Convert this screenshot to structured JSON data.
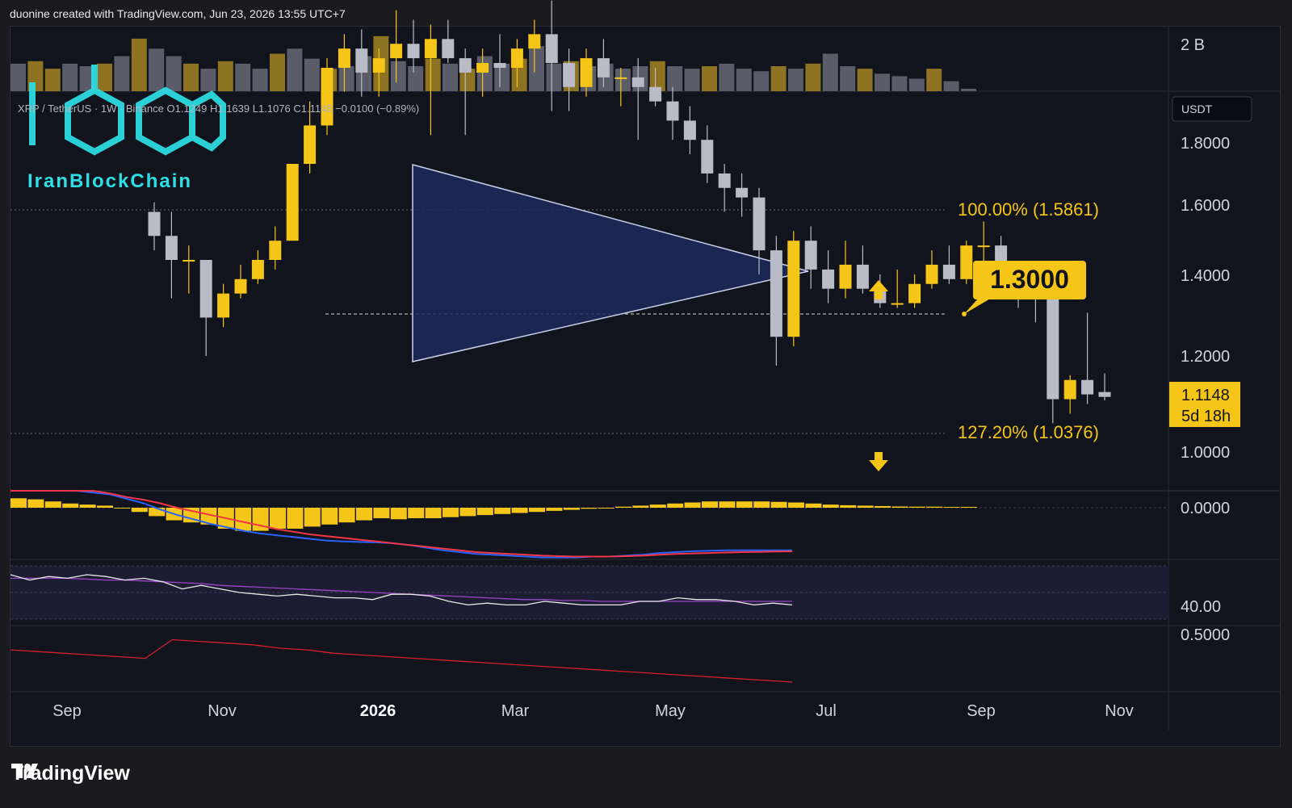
{
  "header": {
    "attribution": "duonine created with TradingView.com, Jun 23, 2026 13:55 UTC+7"
  },
  "footer": {
    "brand": "TradingView"
  },
  "watermark": {
    "brand": "IranBlockChain"
  },
  "symbol_info": "XRP / TetherUS · 1W · Binance  O1.1249  H1.1639  L1.1076  C1.1148  −0.0100 (−0.89%)",
  "price_scale": {
    "currency": "USDT",
    "ticks": [
      "1.8000",
      "1.6000",
      "1.4000",
      "1.2000",
      "1.0000"
    ],
    "current_price": "1.1148",
    "countdown": "5d 18h",
    "volume_label": "2 B",
    "macd_label": "0.0000",
    "rsi_label": "40.00",
    "lower_label": "0.5000"
  },
  "time_axis": [
    "Sep",
    "Nov",
    "2026",
    "Mar",
    "May",
    "Jul",
    "Sep",
    "Nov"
  ],
  "annotations": {
    "fib_100": "100.00% (1.5861)",
    "fib_127": "127.20% (1.0376)",
    "callout": "1.3000"
  },
  "colors": {
    "up": "#f5c518",
    "down": "#b9bcc6",
    "triangle_fill": "#1d2a5c",
    "triangle_stroke": "#c9d0ea",
    "macd": "#2962ff",
    "signal": "#f23645",
    "rsi": "#e9e9ea",
    "rsi_ma": "#9c45c7",
    "lower_line": "#d3202a"
  },
  "chart_data": [
    {
      "type": "candlestick",
      "title": "XRP / TetherUS 1W",
      "ylabel": "USDT",
      "ylim": [
        0.92,
        1.9
      ],
      "candles": [
        {
          "o": 1.5,
          "h": 1.52,
          "l": 1.42,
          "c": 1.45
        },
        {
          "o": 1.45,
          "h": 1.5,
          "l": 1.32,
          "c": 1.4
        },
        {
          "o": 1.4,
          "h": 1.43,
          "l": 1.33,
          "c": 1.4
        },
        {
          "o": 1.4,
          "h": 1.4,
          "l": 1.2,
          "c": 1.28
        },
        {
          "o": 1.28,
          "h": 1.35,
          "l": 1.26,
          "c": 1.33
        },
        {
          "o": 1.33,
          "h": 1.39,
          "l": 1.32,
          "c": 1.36
        },
        {
          "o": 1.36,
          "h": 1.42,
          "l": 1.35,
          "c": 1.4
        },
        {
          "o": 1.4,
          "h": 1.47,
          "l": 1.38,
          "c": 1.44
        },
        {
          "o": 1.44,
          "h": 1.6,
          "l": 1.44,
          "c": 1.6
        },
        {
          "o": 1.6,
          "h": 1.73,
          "l": 1.58,
          "c": 1.68
        },
        {
          "o": 1.68,
          "h": 1.82,
          "l": 1.66,
          "c": 1.8
        },
        {
          "o": 1.8,
          "h": 1.87,
          "l": 1.75,
          "c": 1.84
        },
        {
          "o": 1.84,
          "h": 1.88,
          "l": 1.74,
          "c": 1.79
        },
        {
          "o": 1.79,
          "h": 1.84,
          "l": 1.74,
          "c": 1.82
        },
        {
          "o": 1.82,
          "h": 1.92,
          "l": 1.77,
          "c": 1.85
        },
        {
          "o": 1.85,
          "h": 1.9,
          "l": 1.79,
          "c": 1.82
        },
        {
          "o": 1.82,
          "h": 1.89,
          "l": 1.66,
          "c": 1.86
        },
        {
          "o": 1.86,
          "h": 1.9,
          "l": 1.81,
          "c": 1.82
        },
        {
          "o": 1.82,
          "h": 1.84,
          "l": 1.66,
          "c": 1.79
        },
        {
          "o": 1.79,
          "h": 1.84,
          "l": 1.74,
          "c": 1.81
        },
        {
          "o": 1.81,
          "h": 1.87,
          "l": 1.76,
          "c": 1.8
        },
        {
          "o": 1.8,
          "h": 1.86,
          "l": 1.76,
          "c": 1.84
        },
        {
          "o": 1.84,
          "h": 1.9,
          "l": 1.79,
          "c": 1.87
        },
        {
          "o": 1.87,
          "h": 1.94,
          "l": 1.71,
          "c": 1.81
        },
        {
          "o": 1.81,
          "h": 1.84,
          "l": 1.71,
          "c": 1.76
        },
        {
          "o": 1.76,
          "h": 1.84,
          "l": 1.74,
          "c": 1.82
        },
        {
          "o": 1.82,
          "h": 1.86,
          "l": 1.76,
          "c": 1.78
        },
        {
          "o": 1.78,
          "h": 1.8,
          "l": 1.72,
          "c": 1.78
        },
        {
          "o": 1.78,
          "h": 1.82,
          "l": 1.65,
          "c": 1.76
        },
        {
          "o": 1.76,
          "h": 1.8,
          "l": 1.72,
          "c": 1.73
        },
        {
          "o": 1.73,
          "h": 1.76,
          "l": 1.65,
          "c": 1.69
        },
        {
          "o": 1.69,
          "h": 1.72,
          "l": 1.62,
          "c": 1.65
        },
        {
          "o": 1.65,
          "h": 1.68,
          "l": 1.56,
          "c": 1.58
        },
        {
          "o": 1.58,
          "h": 1.6,
          "l": 1.5,
          "c": 1.55
        },
        {
          "o": 1.55,
          "h": 1.58,
          "l": 1.49,
          "c": 1.53
        },
        {
          "o": 1.53,
          "h": 1.55,
          "l": 1.37,
          "c": 1.42
        },
        {
          "o": 1.42,
          "h": 1.45,
          "l": 1.18,
          "c": 1.24
        },
        {
          "o": 1.24,
          "h": 1.46,
          "l": 1.22,
          "c": 1.44
        },
        {
          "o": 1.44,
          "h": 1.47,
          "l": 1.34,
          "c": 1.38
        },
        {
          "o": 1.38,
          "h": 1.42,
          "l": 1.31,
          "c": 1.34
        },
        {
          "o": 1.34,
          "h": 1.44,
          "l": 1.32,
          "c": 1.39
        },
        {
          "o": 1.39,
          "h": 1.43,
          "l": 1.33,
          "c": 1.34
        },
        {
          "o": 1.34,
          "h": 1.37,
          "l": 1.3,
          "c": 1.31
        },
        {
          "o": 1.31,
          "h": 1.38,
          "l": 1.3,
          "c": 1.31
        },
        {
          "o": 1.31,
          "h": 1.37,
          "l": 1.3,
          "c": 1.35
        },
        {
          "o": 1.35,
          "h": 1.42,
          "l": 1.34,
          "c": 1.39
        },
        {
          "o": 1.39,
          "h": 1.43,
          "l": 1.35,
          "c": 1.36
        },
        {
          "o": 1.36,
          "h": 1.44,
          "l": 1.35,
          "c": 1.43
        },
        {
          "o": 1.43,
          "h": 1.48,
          "l": 1.38,
          "c": 1.43
        },
        {
          "o": 1.43,
          "h": 1.45,
          "l": 1.36,
          "c": 1.37
        },
        {
          "o": 1.37,
          "h": 1.38,
          "l": 1.3,
          "c": 1.34
        },
        {
          "o": 1.34,
          "h": 1.35,
          "l": 1.27,
          "c": 1.32
        },
        {
          "o": 1.32,
          "h": 1.33,
          "l": 1.06,
          "c": 1.11
        },
        {
          "o": 1.11,
          "h": 1.16,
          "l": 1.08,
          "c": 1.15
        },
        {
          "o": 1.15,
          "h": 1.29,
          "l": 1.1,
          "c": 1.12
        },
        {
          "o": 1.1249,
          "h": 1.1639,
          "l": 1.1076,
          "c": 1.1148
        }
      ]
    },
    {
      "type": "bar",
      "title": "Volume",
      "values": [
        0.55,
        0.6,
        0.45,
        0.55,
        0.5,
        0.55,
        0.7,
        1.05,
        0.85,
        0.7,
        0.55,
        0.45,
        0.6,
        0.55,
        0.45,
        0.75,
        0.85,
        0.65,
        0.45,
        0.5,
        0.7,
        1.1,
        0.6,
        0.5,
        0.65,
        0.55,
        0.45,
        0.7,
        0.55,
        0.65,
        0.9,
        0.55,
        0.6,
        0.5,
        0.55,
        0.45,
        0.5,
        0.6,
        0.5,
        0.45,
        0.5,
        0.55,
        0.45,
        0.4,
        0.5,
        0.45,
        0.55,
        0.75,
        0.5,
        0.45,
        0.35,
        0.3,
        0.25,
        0.45,
        0.2,
        0.05
      ],
      "up": [
        false,
        true,
        true,
        false,
        false,
        true,
        false,
        true,
        false,
        false,
        true,
        false,
        true,
        false,
        false,
        true,
        false,
        false,
        true,
        false,
        false,
        true,
        false,
        false,
        true,
        false,
        true,
        false,
        false,
        true,
        false,
        false,
        true,
        false,
        false,
        false,
        false,
        true,
        false,
        false,
        true,
        false,
        false,
        false,
        true,
        false,
        true,
        false,
        false,
        true,
        false,
        false,
        false,
        true,
        false,
        false
      ]
    },
    {
      "type": "bar",
      "title": "MACD histogram",
      "values": [
        0.045,
        0.04,
        0.03,
        0.02,
        0.015,
        0.01,
        0.0,
        -0.02,
        -0.04,
        -0.06,
        -0.07,
        -0.08,
        -0.1,
        -0.11,
        -0.11,
        -0.1,
        -0.1,
        -0.09,
        -0.08,
        -0.07,
        -0.06,
        -0.05,
        -0.055,
        -0.05,
        -0.05,
        -0.045,
        -0.04,
        -0.035,
        -0.03,
        -0.025,
        -0.02,
        -0.015,
        -0.01,
        -0.005,
        0.0,
        0.005,
        0.01,
        0.015,
        0.02,
        0.025,
        0.03,
        0.03,
        0.03,
        0.03,
        0.028,
        0.025,
        0.02,
        0.015,
        0.012,
        0.01,
        0.008,
        0.006,
        0.005,
        0.005,
        0.004,
        0.004
      ]
    },
    {
      "type": "line",
      "title": "MACD",
      "series": [
        {
          "values": [
            0.25,
            0.24,
            0.23,
            0.21,
            0.19,
            0.17,
            0.15,
            0.1,
            0.05,
            -0.02,
            -0.08,
            -0.13,
            -0.18,
            -0.22,
            -0.26,
            -0.29,
            -0.31,
            -0.33,
            -0.35,
            -0.37,
            -0.38,
            -0.385,
            -0.39,
            -0.4,
            -0.42,
            -0.45,
            -0.48,
            -0.5,
            -0.52,
            -0.53,
            -0.54,
            -0.55,
            -0.56,
            -0.56,
            -0.56,
            -0.55,
            -0.55,
            -0.54,
            -0.53,
            -0.51,
            -0.5,
            -0.49,
            -0.485,
            -0.48,
            -0.48,
            -0.48,
            -0.48,
            -0.48
          ]
        },
        {
          "values": [
            0.3,
            0.29,
            0.27,
            0.25,
            0.22,
            0.19,
            0.16,
            0.12,
            0.09,
            0.05,
            0.0,
            -0.04,
            -0.08,
            -0.12,
            -0.16,
            -0.2,
            -0.24,
            -0.27,
            -0.3,
            -0.32,
            -0.34,
            -0.36,
            -0.38,
            -0.4,
            -0.42,
            -0.44,
            -0.46,
            -0.48,
            -0.5,
            -0.51,
            -0.52,
            -0.53,
            -0.54,
            -0.545,
            -0.55,
            -0.55,
            -0.55,
            -0.545,
            -0.54,
            -0.53,
            -0.52,
            -0.515,
            -0.51,
            -0.505,
            -0.5,
            -0.497,
            -0.494,
            -0.492
          ]
        }
      ]
    },
    {
      "type": "line",
      "title": "RSI",
      "ylim": [
        30,
        60
      ],
      "series": [
        {
          "values": [
            55,
            52,
            54,
            53,
            55,
            54,
            52,
            53,
            51,
            47,
            49,
            47,
            45,
            44,
            43,
            44,
            43,
            42,
            42,
            41,
            44,
            44,
            43,
            40,
            38,
            39,
            38,
            38,
            40,
            39,
            38,
            38,
            38,
            40,
            40,
            42,
            41,
            41,
            40,
            38,
            39,
            38
          ]
        },
        {
          "values": [
            53,
            53,
            53,
            53,
            52.5,
            52,
            52,
            51.5,
            51,
            50.5,
            50,
            49,
            48.5,
            48,
            47.5,
            47,
            46.5,
            46,
            45.5,
            45,
            44.5,
            44,
            43.5,
            43,
            42.5,
            42,
            41.5,
            41,
            41,
            40.5,
            40.5,
            40,
            40,
            40,
            40,
            40,
            40,
            40,
            40,
            40,
            40,
            40
          ]
        }
      ]
    },
    {
      "type": "line",
      "title": "Lower indicator",
      "series": [
        {
          "values": [
            0.55,
            0.54,
            0.53,
            0.52,
            0.51,
            0.5,
            0.61,
            0.6,
            0.59,
            0.58,
            0.56,
            0.55,
            0.53,
            0.52,
            0.51,
            0.5,
            0.49,
            0.48,
            0.47,
            0.46,
            0.45,
            0.44,
            0.43,
            0.42,
            0.41,
            0.4,
            0.39,
            0.38,
            0.37,
            0.36
          ]
        }
      ]
    }
  ]
}
